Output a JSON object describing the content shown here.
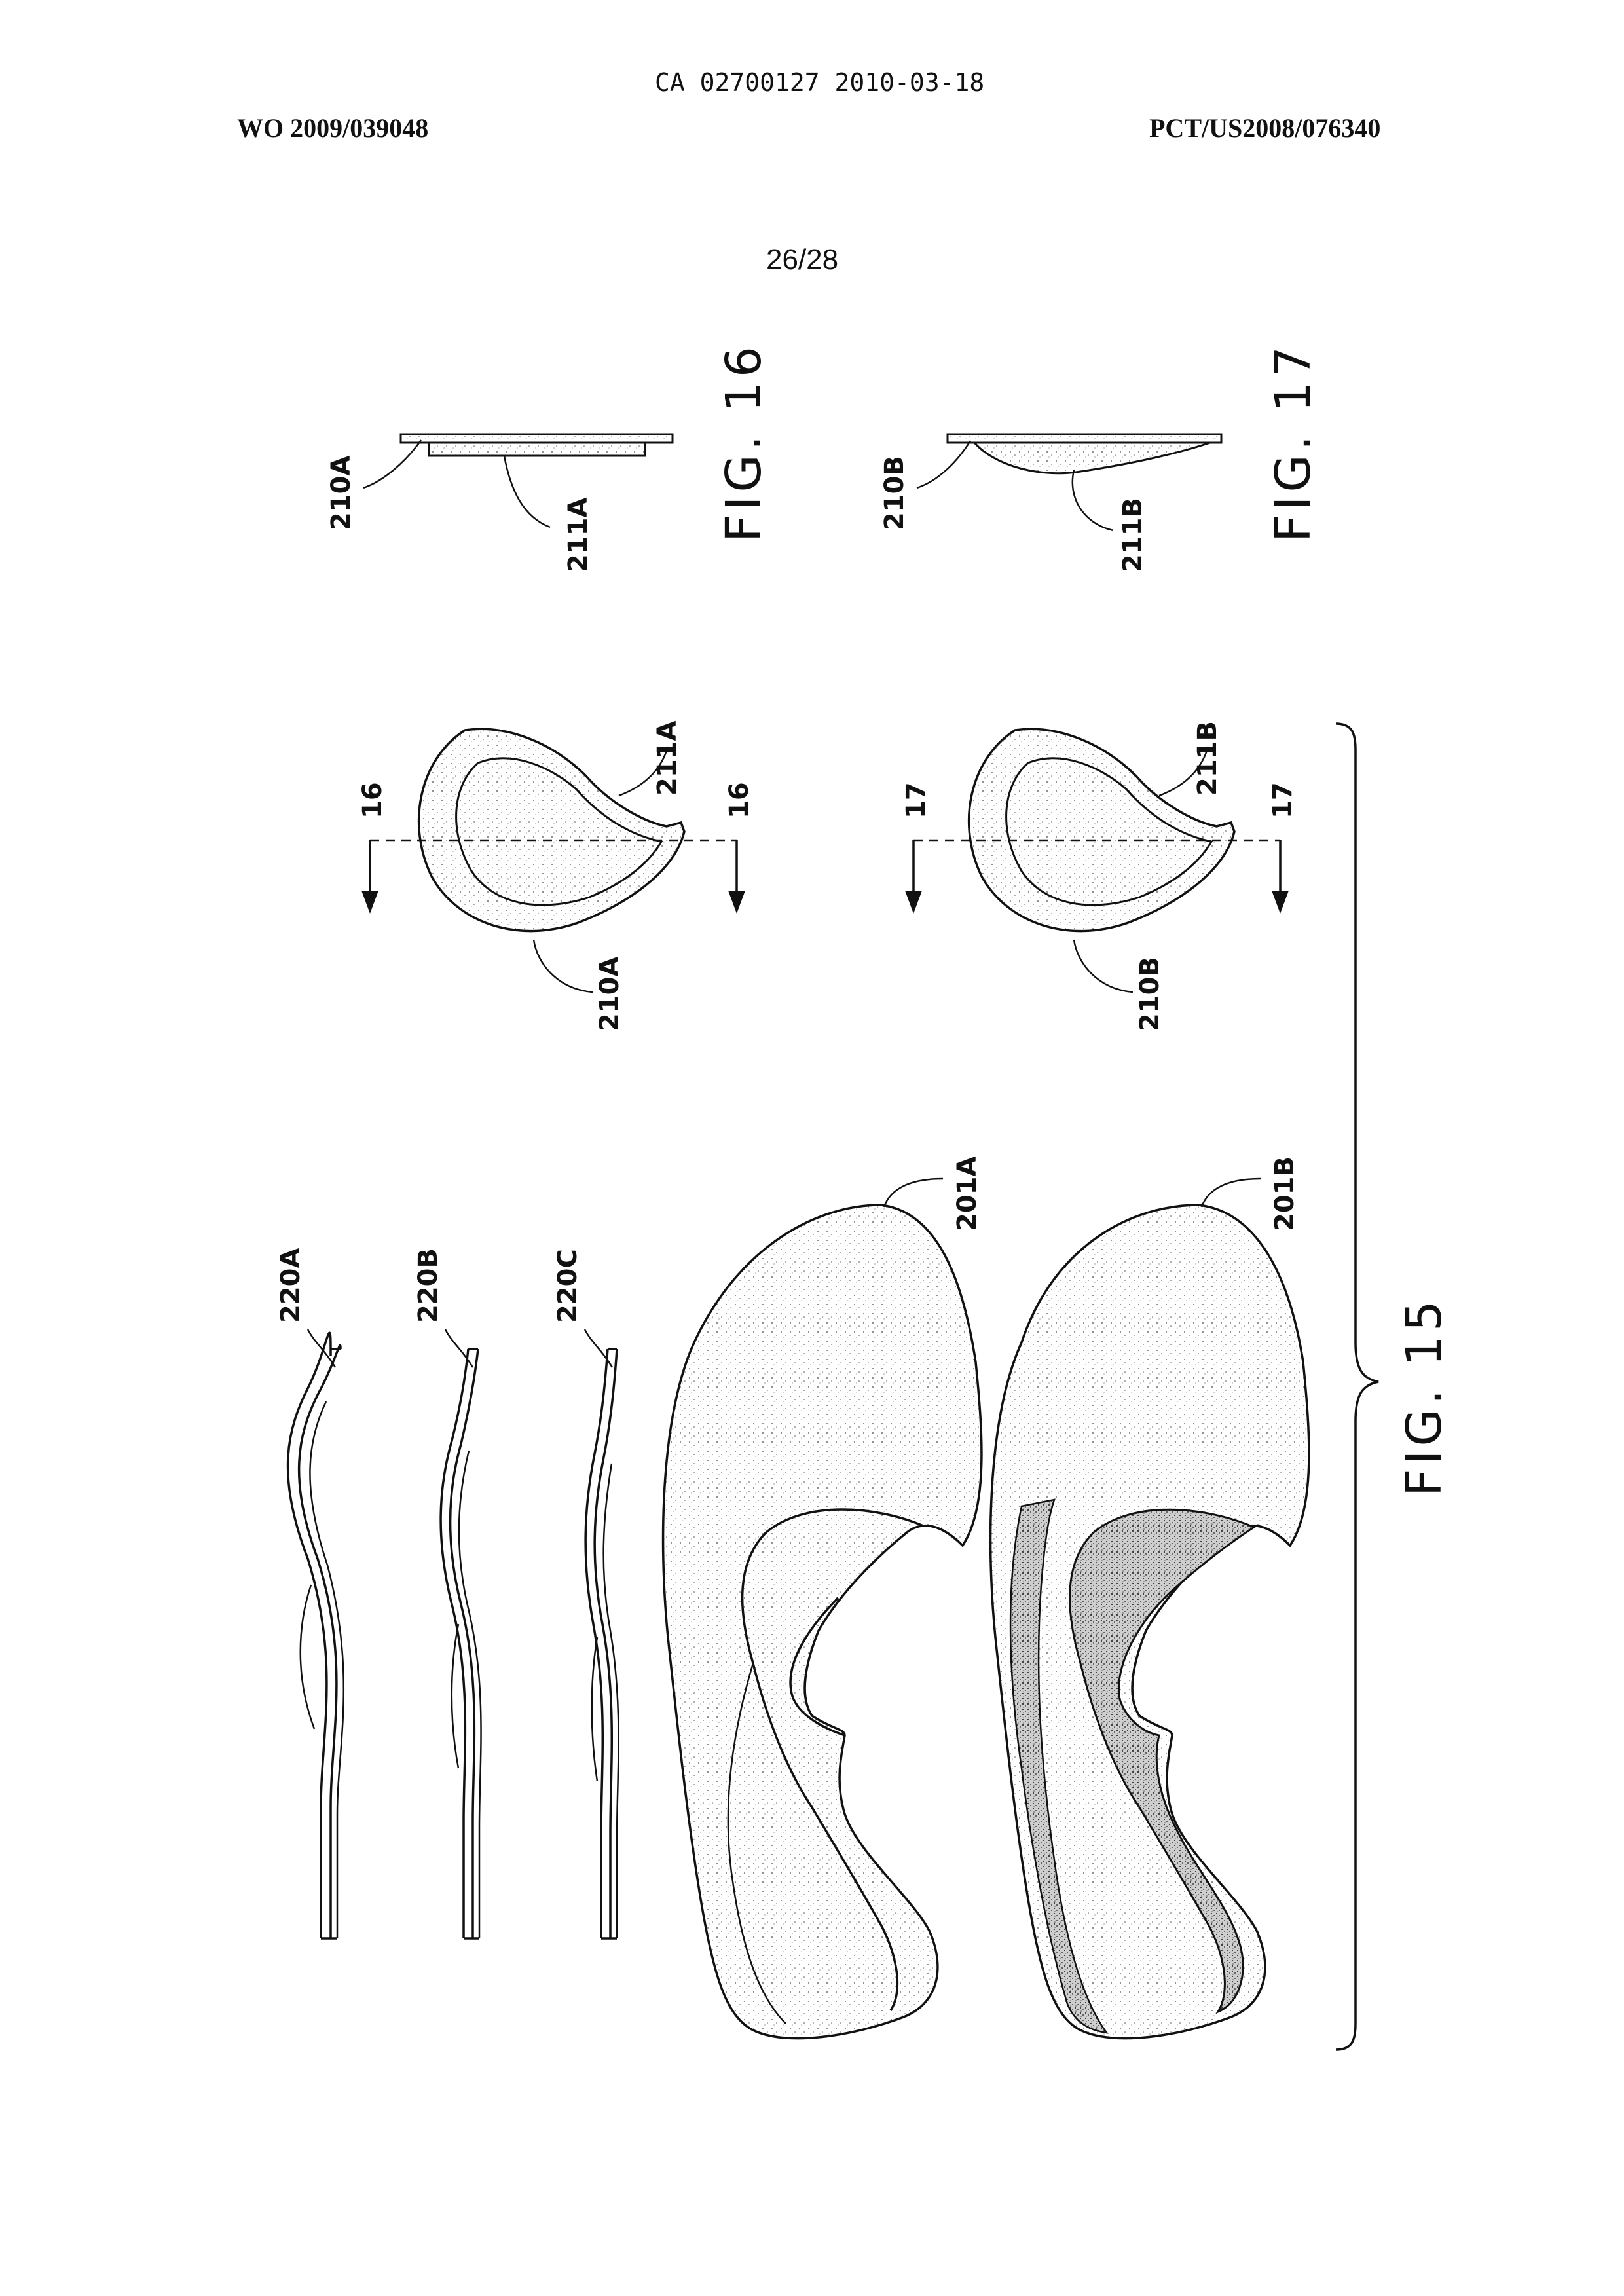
{
  "header": {
    "ca_line": "CA 02700127 2010-03-18",
    "wo_number": "WO 2009/039048",
    "pct_number": "PCT/US2008/076340",
    "sheet_number": "26/28"
  },
  "figures": {
    "fig15": "FIG. 15",
    "fig16": "FIG. 16",
    "fig17": "FIG. 17"
  },
  "labels": {
    "l220A": "220A",
    "l220B": "220B",
    "l220C": "220C",
    "l201A": "201A",
    "l201B": "201B",
    "l210A_top": "210A",
    "l211A_top": "211A",
    "l210A_mid": "210A",
    "l211A_mid": "211A",
    "l210B_top": "210B",
    "l211B_top": "211B",
    "l210B_mid": "210B",
    "l211B_mid": "211B",
    "sec16a": "16",
    "sec16b": "16",
    "sec17a": "17",
    "sec17b": "17"
  },
  "colors": {
    "ink": "#111111",
    "paper": "#ffffff"
  }
}
